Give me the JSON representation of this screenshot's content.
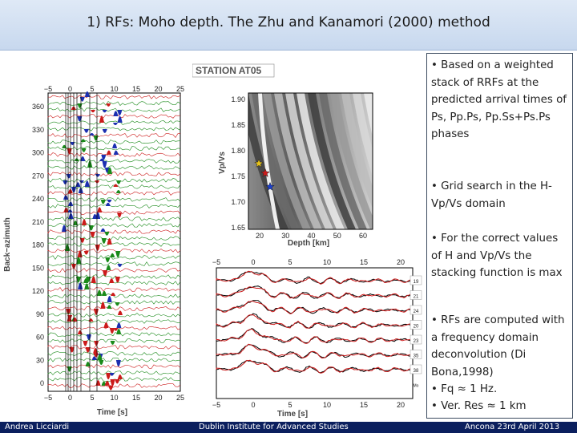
{
  "slide": {
    "title": "1) RFs: Moho depth.  The Zhu and Kanamori (2000) method"
  },
  "left_plot": {
    "x_ticks": [
      "−5",
      "0",
      "5",
      "10",
      "15",
      "20",
      "25"
    ],
    "y_ticks": [
      "360",
      "330",
      "300",
      "270",
      "240",
      "210",
      "180",
      "150",
      "120",
      "90",
      "60",
      "30",
      "0"
    ],
    "y_label": "Back−azimuth",
    "x_label": "Time [s]"
  },
  "grid_plot": {
    "station_label": "STATION AT05",
    "y_ticks": [
      "1.90",
      "1.85",
      "1.80",
      "1.75",
      "1.70",
      "1.65"
    ],
    "x_ticks": [
      "20",
      "30",
      "40",
      "50",
      "60"
    ],
    "y_label": "Vp/Vs",
    "x_label": "Depth [km]",
    "star_colors": [
      "#e6c21a",
      "#cc1b1b",
      "#1b3fcc"
    ]
  },
  "waveform_plot": {
    "x_ticks": [
      "−5",
      "0",
      "5",
      "10",
      "15",
      "20"
    ],
    "trace_labels": [
      "19",
      "21",
      "24",
      "20",
      "23",
      "35",
      "38",
      "Mo"
    ],
    "x_label": "Time [s]"
  },
  "bullets": [
    "•   Based on a weighted stack of RRFs at the predicted arrival times of Ps, Pp.Ps, Pp.Ss+Ps.Ps phases",
    "•   Grid search in the H-Vp/Vs domain",
    "•   For the correct values of H and Vp/Vs the stacking function is max",
    "•   RFs are computed with a frequency domain deconvolution (Di Bona,1998)",
    "•   Fq ≈ 1 Hz.",
    "•   Ver. Res ≈ 1 km"
  ],
  "footer": {
    "author": "Andrea Licciardi",
    "institution": "Dublin Institute for Advanced Studies",
    "event": "Ancona 23rd April 2013"
  }
}
